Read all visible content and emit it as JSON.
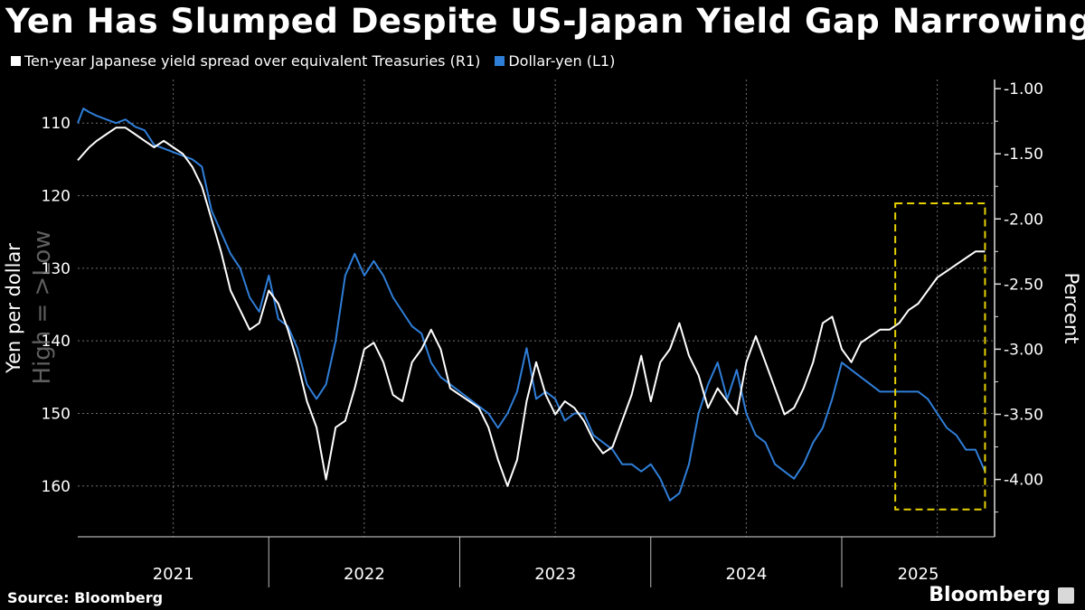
{
  "title": "Yen Has Slumped Despite US-Japan Yield Gap Narrowing",
  "source": "Source: Bloomberg",
  "brand": "Bloomberg",
  "colors": {
    "spread": "#ffffff",
    "usdjpy": "#2f7ed8",
    "highlight": "#e8d200",
    "grid": "#6f6f6f"
  },
  "chart_data": {
    "type": "line",
    "legend": [
      "Ten-year Japanese yield spread over equivalent Treasuries (R1)",
      "Dollar-yen (L1)"
    ],
    "ylabel_left": "Yen per dollar",
    "ylabel_right": "Percent",
    "inverted_note": "High = >Low",
    "y_left_range": [
      104,
      167
    ],
    "y_left_ticks": [
      "110",
      "120",
      "130",
      "140",
      "150",
      "160"
    ],
    "y_right_range": [
      -4.44,
      -0.93
    ],
    "y_right_ticks": [
      "-1.00",
      "-1.50",
      "-2.00",
      "-2.50",
      "-3.00",
      "-3.50",
      "-4.00"
    ],
    "x_range": [
      2021.0,
      2025.8
    ],
    "x_labels": [
      "2021",
      "2022",
      "2023",
      "2024",
      "2025"
    ],
    "series": [
      {
        "name": "Dollar-yen (L1)",
        "axis": "left",
        "x": [
          2021.0,
          2021.03,
          2021.06,
          2021.1,
          2021.15,
          2021.2,
          2021.25,
          2021.3,
          2021.35,
          2021.4,
          2021.45,
          2021.5,
          2021.55,
          2021.6,
          2021.65,
          2021.7,
          2021.75,
          2021.8,
          2021.85,
          2021.9,
          2021.95,
          2022.0,
          2022.05,
          2022.1,
          2022.15,
          2022.2,
          2022.25,
          2022.3,
          2022.35,
          2022.4,
          2022.45,
          2022.5,
          2022.55,
          2022.6,
          2022.65,
          2022.7,
          2022.75,
          2022.8,
          2022.85,
          2022.9,
          2022.95,
          2023.0,
          2023.05,
          2023.1,
          2023.15,
          2023.2,
          2023.25,
          2023.3,
          2023.35,
          2023.4,
          2023.45,
          2023.5,
          2023.55,
          2023.6,
          2023.65,
          2023.7,
          2023.75,
          2023.8,
          2023.85,
          2023.9,
          2023.95,
          2024.0,
          2024.05,
          2024.1,
          2024.15,
          2024.2,
          2024.25,
          2024.3,
          2024.35,
          2024.4,
          2024.45,
          2024.5,
          2024.55,
          2024.6,
          2024.65,
          2024.7,
          2024.75,
          2024.8,
          2024.85,
          2024.9,
          2024.95,
          2025.0,
          2025.05,
          2025.1,
          2025.15,
          2025.2,
          2025.25,
          2025.3,
          2025.35,
          2025.4,
          2025.45,
          2025.5,
          2025.55,
          2025.6,
          2025.65,
          2025.7,
          2025.75
        ],
        "values": [
          110,
          108,
          108.5,
          109,
          109.5,
          110,
          109.5,
          110.5,
          111,
          113,
          113.5,
          114,
          114.5,
          115,
          116,
          122,
          125,
          128,
          130,
          134,
          136,
          131,
          137,
          138,
          141,
          146,
          148,
          146,
          140,
          131,
          128,
          131,
          129,
          131,
          134,
          136,
          138,
          139,
          143,
          145,
          146,
          147,
          148,
          149,
          150,
          152,
          150,
          147,
          141,
          148,
          147,
          148,
          151,
          150,
          150,
          153,
          154,
          155,
          157,
          157,
          158,
          157,
          159,
          162,
          161,
          157,
          150,
          146,
          143,
          148,
          144,
          150,
          153,
          154,
          157,
          158,
          159,
          157,
          154,
          152,
          148,
          143,
          144,
          145,
          146,
          147,
          147,
          147,
          147,
          147,
          148,
          150,
          152,
          153,
          155,
          155,
          158
        ]
      },
      {
        "name": "Ten-year Japanese yield spread over equivalent Treasuries (R1)",
        "axis": "right",
        "x": [
          2021.0,
          2021.03,
          2021.06,
          2021.1,
          2021.15,
          2021.2,
          2021.25,
          2021.3,
          2021.35,
          2021.4,
          2021.45,
          2021.5,
          2021.55,
          2021.6,
          2021.65,
          2021.7,
          2021.75,
          2021.8,
          2021.85,
          2021.9,
          2021.95,
          2022.0,
          2022.05,
          2022.1,
          2022.15,
          2022.2,
          2022.25,
          2022.3,
          2022.35,
          2022.4,
          2022.45,
          2022.5,
          2022.55,
          2022.6,
          2022.65,
          2022.7,
          2022.75,
          2022.8,
          2022.85,
          2022.9,
          2022.95,
          2023.0,
          2023.05,
          2023.1,
          2023.15,
          2023.2,
          2023.25,
          2023.3,
          2023.35,
          2023.4,
          2023.45,
          2023.5,
          2023.55,
          2023.6,
          2023.65,
          2023.7,
          2023.75,
          2023.8,
          2023.85,
          2023.9,
          2023.95,
          2024.0,
          2024.05,
          2024.1,
          2024.15,
          2024.2,
          2024.25,
          2024.3,
          2024.35,
          2024.4,
          2024.45,
          2024.5,
          2024.55,
          2024.6,
          2024.65,
          2024.7,
          2024.75,
          2024.8,
          2024.85,
          2024.9,
          2024.95,
          2025.0,
          2025.05,
          2025.1,
          2025.15,
          2025.2,
          2025.25,
          2025.3,
          2025.35,
          2025.4,
          2025.45,
          2025.5,
          2025.55,
          2025.6,
          2025.65,
          2025.7,
          2025.75
        ],
        "values": [
          -1.55,
          -1.5,
          -1.45,
          -1.4,
          -1.35,
          -1.3,
          -1.3,
          -1.35,
          -1.4,
          -1.45,
          -1.4,
          -1.45,
          -1.5,
          -1.6,
          -1.75,
          -2.0,
          -2.25,
          -2.55,
          -2.7,
          -2.85,
          -2.8,
          -2.55,
          -2.65,
          -2.85,
          -3.1,
          -3.4,
          -3.6,
          -4.0,
          -3.6,
          -3.55,
          -3.3,
          -3.0,
          -2.95,
          -3.1,
          -3.35,
          -3.4,
          -3.1,
          -3.0,
          -2.85,
          -3.0,
          -3.3,
          -3.35,
          -3.4,
          -3.45,
          -3.6,
          -3.85,
          -4.05,
          -3.85,
          -3.4,
          -3.1,
          -3.35,
          -3.5,
          -3.4,
          -3.45,
          -3.55,
          -3.7,
          -3.8,
          -3.75,
          -3.55,
          -3.35,
          -3.05,
          -3.4,
          -3.1,
          -3.0,
          -2.8,
          -3.05,
          -3.2,
          -3.45,
          -3.3,
          -3.4,
          -3.5,
          -3.1,
          -2.9,
          -3.1,
          -3.3,
          -3.5,
          -3.45,
          -3.3,
          -3.1,
          -2.8,
          -2.75,
          -3.0,
          -3.1,
          -2.95,
          -2.9,
          -2.85,
          -2.85,
          -2.8,
          -2.7,
          -2.65,
          -2.55,
          -2.45,
          -2.4,
          -2.35,
          -2.3,
          -2.25,
          -2.25
        ]
      }
    ],
    "highlight_box": {
      "x_range": [
        2025.28,
        2025.75
      ],
      "y_right_range": [
        -4.23,
        -1.88
      ]
    }
  }
}
